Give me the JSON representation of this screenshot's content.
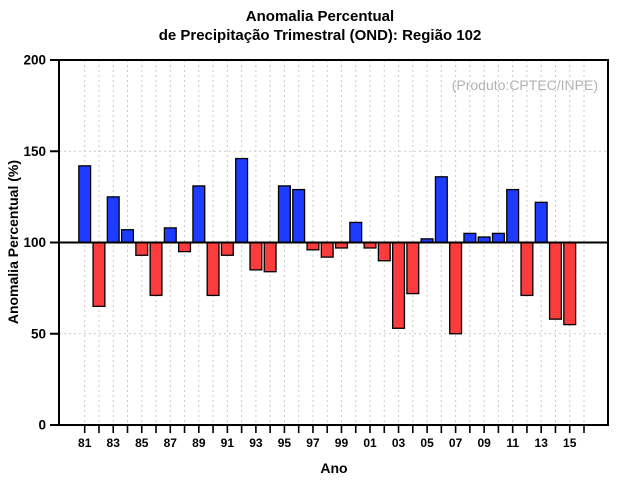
{
  "title": {
    "line1": "Anomalia Percentual",
    "line2": "de Precipitação Trimestral (OND): Região 102"
  },
  "annotation": "(Produto:CPTEC/INPE)",
  "colors": {
    "positive_bar": "#1e3cff",
    "negative_bar": "#fa3c3c",
    "bar_outline": "#000000",
    "grid": "#c9c9c9",
    "axis": "#000000",
    "annotation_text": "#b2b2b2",
    "background": "#ffffff"
  },
  "chart_data": {
    "type": "bar",
    "title": "Anomalia Percentual de Precipitação Trimestral (OND): Região 102",
    "xlabel": "Ano",
    "ylabel": "Anomalia Percentual (%)",
    "baseline": 100,
    "ylim": [
      0,
      200
    ],
    "yticks": [
      0,
      50,
      100,
      150,
      200
    ],
    "grid": "dashed vertical per year and horizontal at 50/150",
    "legend": "none",
    "years": [
      "81",
      "82",
      "83",
      "84",
      "85",
      "86",
      "87",
      "88",
      "89",
      "90",
      "91",
      "92",
      "93",
      "94",
      "95",
      "96",
      "97",
      "98",
      "99",
      "00",
      "01",
      "02",
      "03",
      "04",
      "05",
      "06",
      "07",
      "08",
      "09",
      "10",
      "11",
      "12",
      "13",
      "14",
      "15"
    ],
    "values": [
      142,
      65,
      125,
      107,
      93,
      71,
      108,
      95,
      131,
      71,
      93,
      146,
      85,
      84,
      131,
      129,
      96,
      92,
      97,
      111,
      97,
      90,
      53,
      72,
      102,
      136,
      50,
      105,
      103,
      105,
      129,
      71,
      122,
      58,
      55
    ],
    "xticklabels": [
      "81",
      "83",
      "85",
      "87",
      "89",
      "91",
      "93",
      "95",
      "97",
      "99",
      "01",
      "03",
      "05",
      "07",
      "09",
      "11",
      "13",
      "15"
    ],
    "extra_unbarred_year_tick": "16"
  }
}
